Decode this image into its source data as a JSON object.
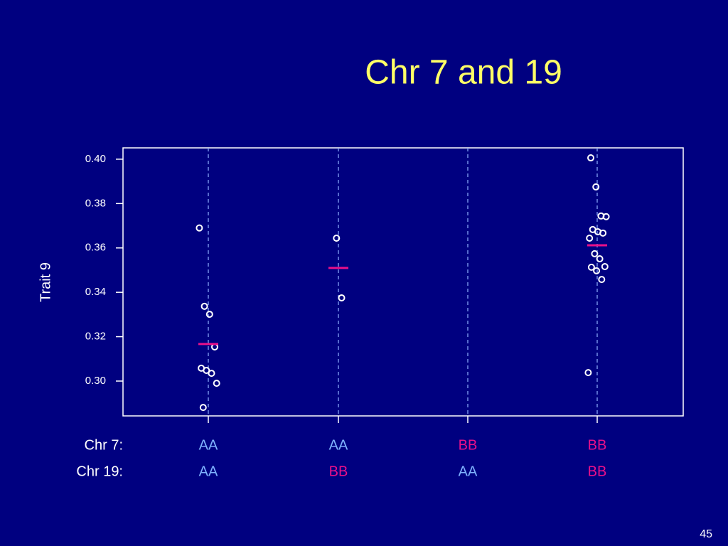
{
  "chart_data": {
    "type": "strip",
    "title": "Chr 7 and 19",
    "ylabel": "Trait 9",
    "ylim": [
      0.2843,
      0.4051
    ],
    "yticks": [
      {
        "value": 0.3,
        "label": "0.30"
      },
      0.32,
      0.34,
      0.36,
      0.38,
      {
        "value": 0.4,
        "label": "0.40"
      }
    ],
    "point_color": "#ffffff",
    "mean_color": "#e8108a",
    "groups": [
      {
        "values": [
          0.369,
          0.3337,
          0.3301,
          0.3154,
          0.3058,
          0.3048,
          0.3035,
          0.299,
          0.2881
        ],
        "mean": 0.3167
      },
      {
        "values": [
          0.3644,
          0.3375
        ],
        "mean": 0.351
      },
      {
        "values": [],
        "mean": null
      },
      {
        "values": [
          0.4006,
          0.3875,
          0.3744,
          0.3741,
          0.3683,
          0.3673,
          0.3667,
          0.3644,
          0.3574,
          0.3551,
          0.3516,
          0.3513,
          0.3497,
          0.3458,
          0.3038
        ],
        "mean": 0.3612
      }
    ],
    "rows": [
      {
        "label": "Chr 7:",
        "values": [
          "AA",
          "AA",
          "BB",
          "BB"
        ],
        "colors": [
          "#7fb2ff",
          "#7fb2ff",
          "#e8108a",
          "#e8108a"
        ]
      },
      {
        "label": "Chr 19:",
        "values": [
          "AA",
          "BB",
          "AA",
          "BB"
        ],
        "colors": [
          "#7fb2ff",
          "#e8108a",
          "#7fb2ff",
          "#e8108a"
        ]
      }
    ]
  },
  "slide_number": "45"
}
